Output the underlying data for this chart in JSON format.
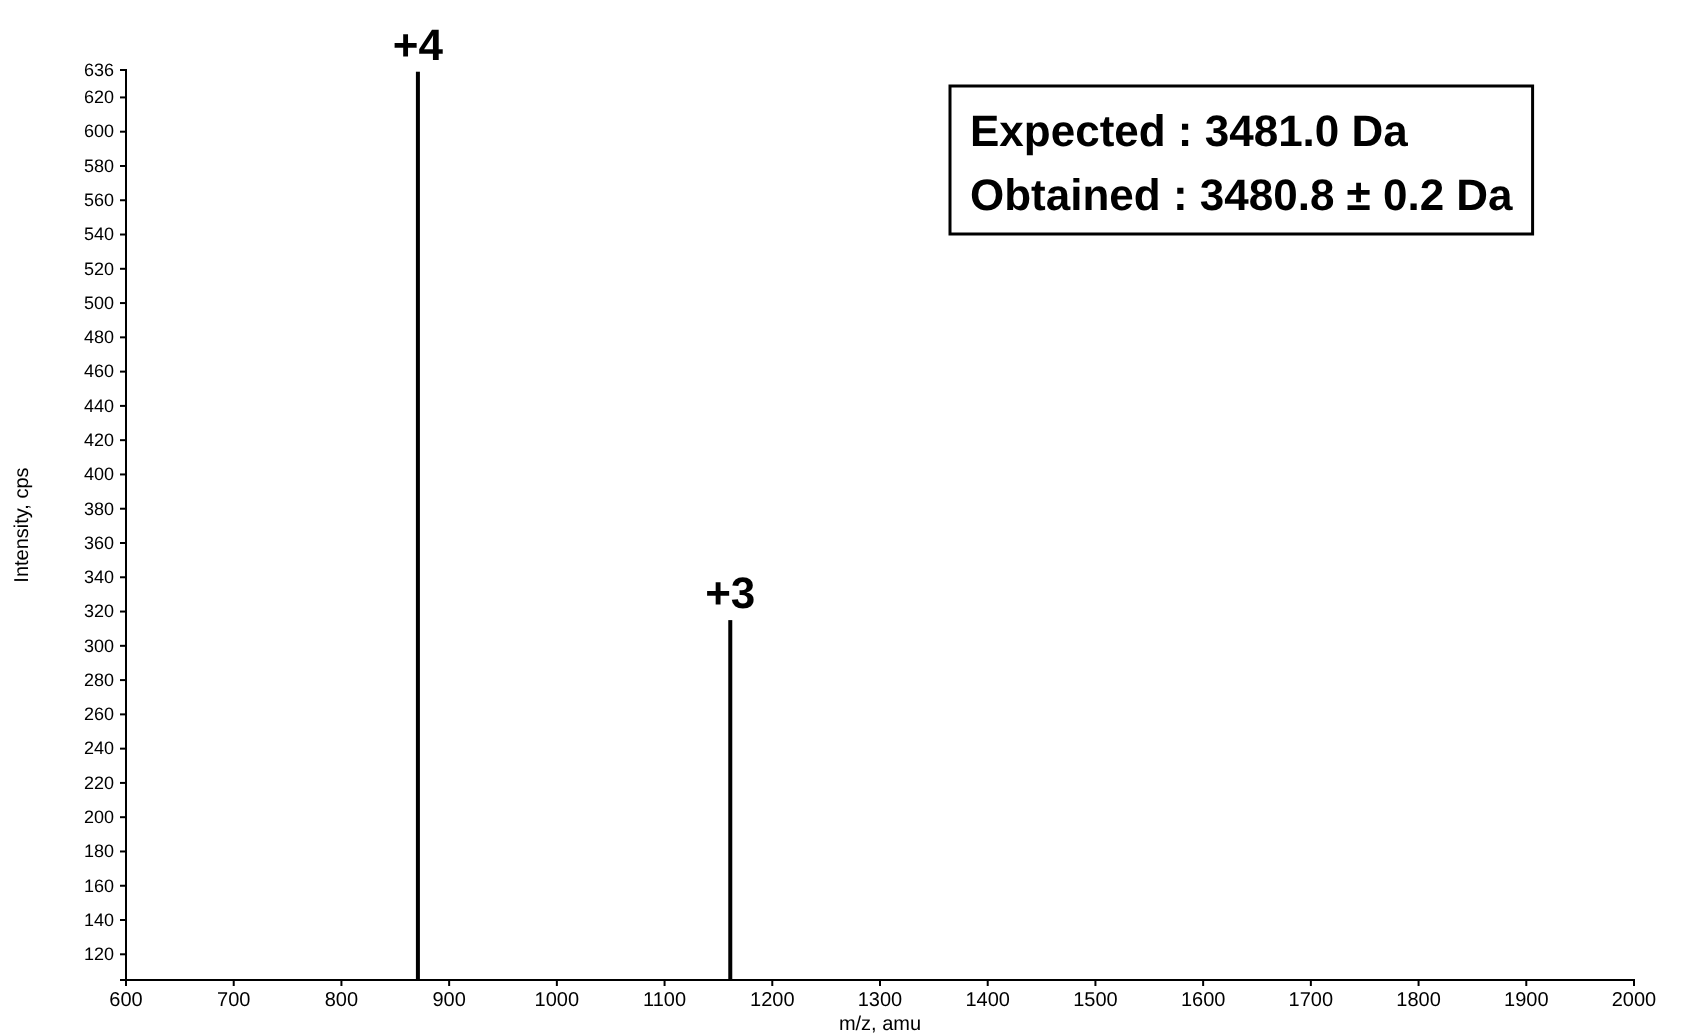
{
  "chart_data": {
    "type": "bar",
    "xlabel": "m/z, amu",
    "ylabel": "Intensity, cps",
    "x": [
      871,
      1161
    ],
    "values": [
      635,
      315
    ],
    "color": "#000000",
    "xlim": [
      600,
      2000
    ],
    "xticks": [
      600,
      700,
      800,
      900,
      1000,
      1100,
      1200,
      1300,
      1400,
      1500,
      1600,
      1700,
      1800,
      1900,
      2000
    ],
    "ylim": [
      105,
      636
    ],
    "yticks": [
      120,
      140,
      160,
      180,
      200,
      220,
      240,
      260,
      280,
      300,
      320,
      340,
      360,
      380,
      400,
      420,
      440,
      460,
      480,
      500,
      520,
      540,
      560,
      580,
      600,
      620,
      636
    ],
    "grid": false,
    "annotations": [
      {
        "text": "+4",
        "x": 871,
        "y": 635
      },
      {
        "text": "+3",
        "x": 1161,
        "y": 315
      },
      "Expected : 3481.0 Da",
      "Obtained : 3480.8 ± 0.2 Da"
    ]
  }
}
